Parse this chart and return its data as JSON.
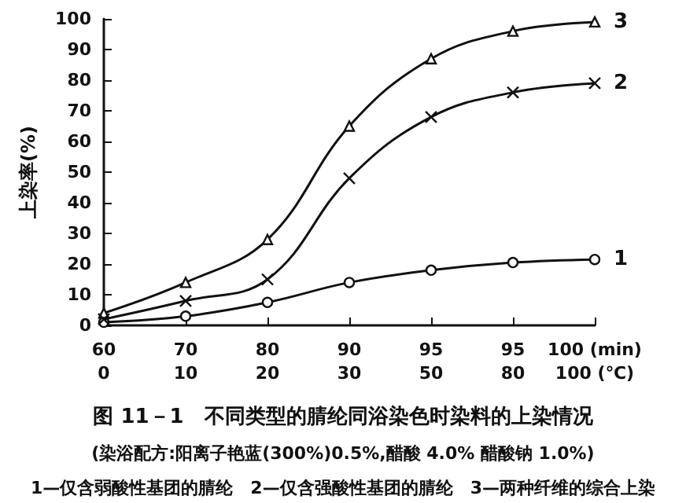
{
  "chart_data": {
    "type": "line",
    "title": "图 11－1　不同类型的腈纶同浴染色时染料的上染情况",
    "subtitle": "(染浴配方:阳离子艳蓝(300%)0.5%,醋酸 4.0% 醋酸钠 1.0%)",
    "annotations": [
      "1—仅含弱酸性基团的腈纶　2—仅含强酸性基团的腈纶　3—两种纤维的综合上染"
    ],
    "ylabel": "上染率(%)",
    "categories": [
      "60\n0",
      "70\n10",
      "80\n20",
      "90\n30",
      "95\n50",
      "95\n80",
      "100 (min)\n100 (℃)"
    ],
    "series": [
      {
        "name": "3",
        "color": "#111111",
        "marker": "triangle",
        "values": [
          4,
          14,
          28,
          65,
          87,
          96,
          99
        ]
      },
      {
        "name": "2",
        "color": "#111111",
        "marker": "cross",
        "values": [
          2,
          8,
          15,
          48,
          68,
          76,
          79
        ]
      },
      {
        "name": "1",
        "color": "#111111",
        "marker": "circle",
        "values": [
          1,
          3,
          7.5,
          14,
          18,
          20.5,
          21.5
        ]
      }
    ],
    "ylim": [
      0,
      100
    ],
    "yticks": [
      0,
      10,
      20,
      30,
      40,
      50,
      60,
      70,
      80,
      90,
      100
    ],
    "grid": false,
    "legend": false,
    "line_style": "solid"
  }
}
